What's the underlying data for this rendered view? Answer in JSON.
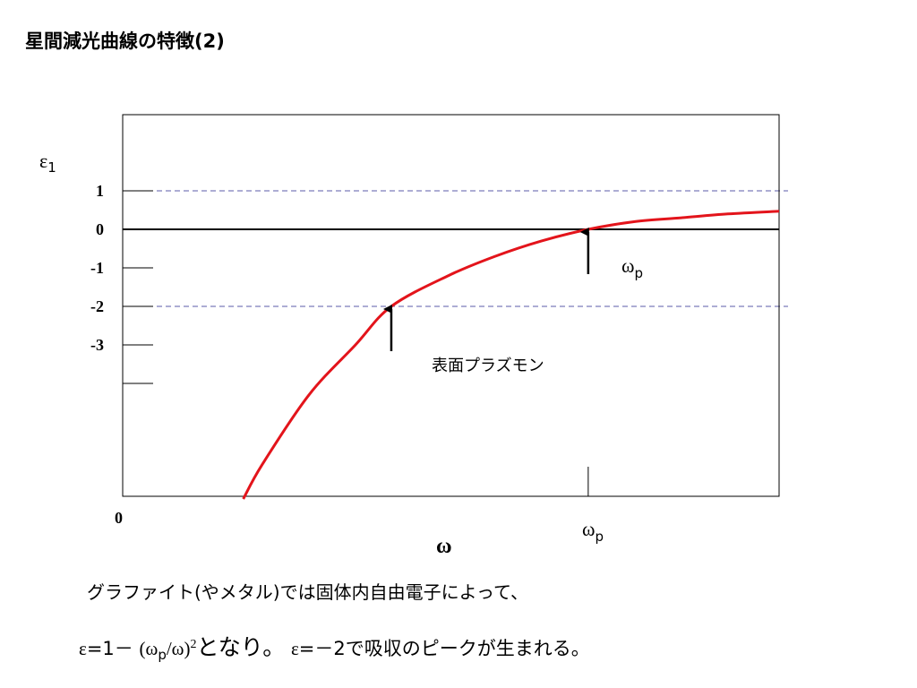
{
  "title": "星間減光曲線の特徴(2)",
  "chart_data": {
    "type": "line",
    "ylabel": "ε₁",
    "ylabel_base": "ε",
    "ylabel_sub": "1",
    "xlabel": "ω",
    "x_tick_labels": [
      "0",
      "ωp"
    ],
    "xtick_origin_label": "0",
    "xtick_wp_base": "ω",
    "xtick_wp_sub": "p",
    "yticks": [
      {
        "value": 1,
        "label": "1"
      },
      {
        "value": 0,
        "label": "0"
      },
      {
        "value": -1,
        "label": "-1"
      },
      {
        "value": -2,
        "label": "-2"
      },
      {
        "value": -3,
        "label": "-3"
      },
      {
        "value": -4,
        "label": ""
      }
    ],
    "ylim": [
      -7,
      2.9
    ],
    "xlim": [
      0,
      1.41
    ],
    "reference_lines": [
      {
        "y": 1,
        "style": "dashed",
        "color": "#5b5ba8"
      },
      {
        "y": 0,
        "style": "solid",
        "color": "#000000"
      },
      {
        "y": -2,
        "style": "dashed",
        "color": "#5b5ba8"
      }
    ],
    "series": [
      {
        "color": "#e3141b",
        "x": [
          0.259,
          0.3,
          0.4,
          0.5,
          0.577,
          0.7,
          0.8,
          0.9,
          1.0,
          1.1,
          1.2,
          1.3,
          1.41
        ],
        "y": [
          -7.0,
          -6.1,
          -4.3,
          -3.0,
          -2.0,
          -1.2,
          -0.7,
          -0.3,
          0.0,
          0.2,
          0.3,
          0.4,
          0.47
        ]
      }
    ],
    "annotations": [
      {
        "text": "表面プラズモン",
        "x": 0.577,
        "y": -2,
        "kind": "arrow-up"
      },
      {
        "text": "ωp",
        "base": "ω",
        "sub": "p",
        "x": 1.0,
        "y": 0,
        "kind": "arrow-up"
      }
    ]
  },
  "caption": {
    "line1": "グラファイト(やメタル)では固体内自由電子によって、",
    "line2_eps": "ε",
    "line2_eq": "=1－",
    "line2_paren_open": "(ω",
    "line2_sub_p": "p",
    "line2_paren_close": "/ω)",
    "line2_sup": "2",
    "line2_mid": "となり。",
    "line2_eps2": "ε",
    "line2_rest": "=－2で吸収のピークが生まれる。"
  }
}
